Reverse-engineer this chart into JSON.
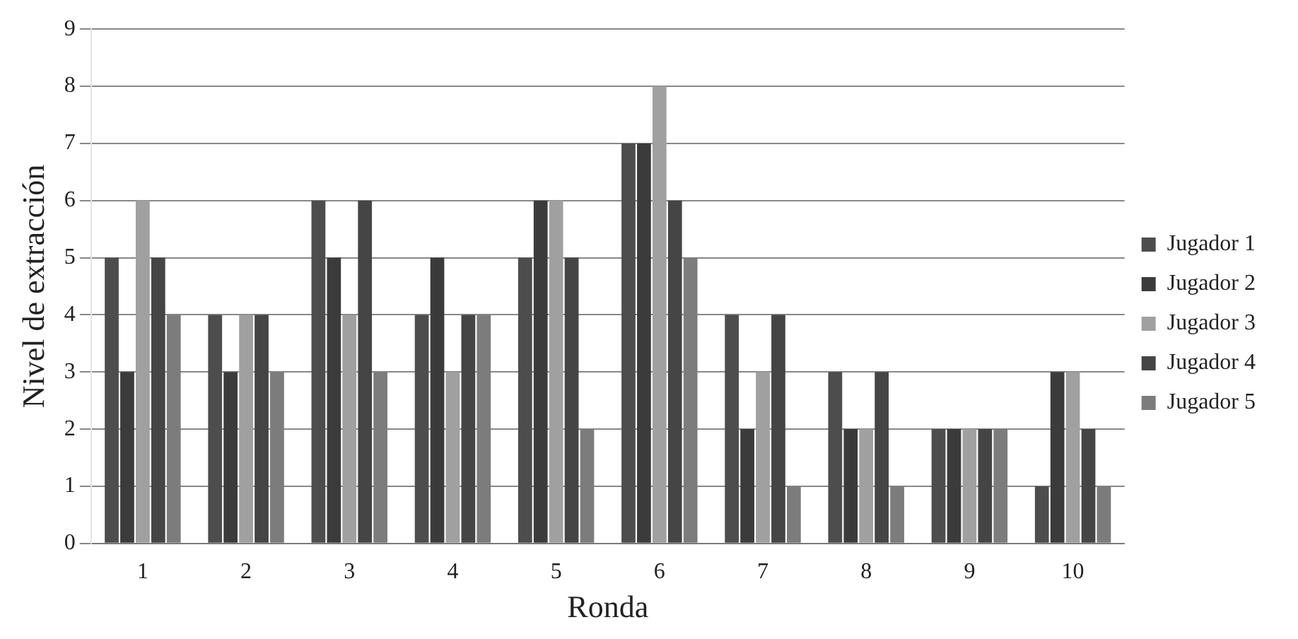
{
  "chart_data": {
    "type": "bar",
    "xlabel": "Ronda",
    "ylabel": "Nivel de extracción",
    "categories": [
      "1",
      "2",
      "3",
      "4",
      "5",
      "6",
      "7",
      "8",
      "9",
      "10"
    ],
    "series": [
      {
        "name": "Jugador 1",
        "color": "#4d4d4d",
        "values": [
          5,
          4,
          6,
          4,
          5,
          7,
          4,
          3,
          2,
          1
        ]
      },
      {
        "name": "Jugador 2",
        "color": "#3b3b3b",
        "values": [
          3,
          3,
          5,
          5,
          6,
          7,
          2,
          2,
          2,
          3
        ]
      },
      {
        "name": "Jugador 3",
        "color": "#a0a0a0",
        "values": [
          6,
          4,
          4,
          3,
          6,
          8,
          3,
          2,
          2,
          3
        ]
      },
      {
        "name": "Jugador 4",
        "color": "#454545",
        "values": [
          5,
          4,
          6,
          4,
          5,
          6,
          4,
          3,
          2,
          2
        ]
      },
      {
        "name": "Jugador 5",
        "color": "#7c7c7c",
        "values": [
          4,
          3,
          3,
          4,
          2,
          5,
          1,
          1,
          2,
          1
        ]
      }
    ],
    "ylim": [
      0,
      9
    ],
    "yticks": [
      0,
      1,
      2,
      3,
      4,
      5,
      6,
      7,
      8,
      9
    ],
    "grid": "y",
    "legend": "right"
  }
}
